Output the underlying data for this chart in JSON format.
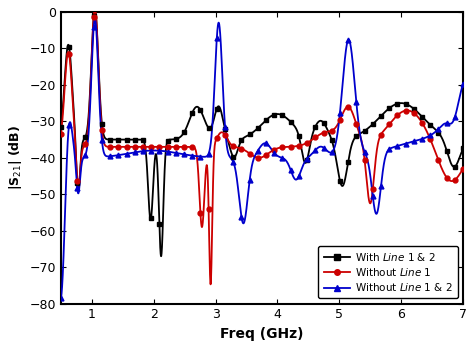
{
  "xlabel": "Freq (GHz)",
  "ylabel": "|S$_{21}$| (dB)",
  "xlim": [
    0.5,
    7.0
  ],
  "ylim": [
    -80,
    0
  ],
  "yticks": [
    0,
    -10,
    -20,
    -30,
    -40,
    -50,
    -60,
    -70,
    -80
  ],
  "xticks": [
    1,
    2,
    3,
    4,
    5,
    6,
    7
  ],
  "line_colors": [
    "#000000",
    "#cc0000",
    "#0000cc"
  ],
  "line_markers": [
    "s",
    "o",
    "^"
  ],
  "legend_labels": [
    "With $\\it{Line}$ 1 & 2",
    "Without $\\it{Line}$ 1",
    "Without $\\it{Line}$ 1 & 2"
  ],
  "background": "#ffffff"
}
